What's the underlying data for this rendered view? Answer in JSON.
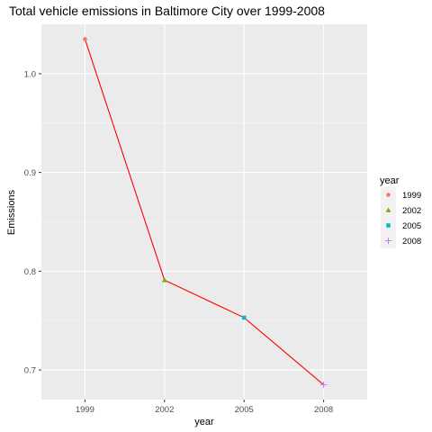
{
  "chart_data": {
    "type": "line",
    "title": "Total vehicle emissions in Baltimore City over 1999-2008",
    "xlabel": "year",
    "ylabel": "Emissions",
    "x": [
      "1999",
      "2002",
      "2005",
      "2008"
    ],
    "series": [
      {
        "values": [
          1.035,
          0.791,
          0.753,
          0.685
        ],
        "color": "#ff0000"
      }
    ],
    "points": [
      {
        "year": "1999",
        "value": 1.035,
        "color": "#F8766D",
        "shape": "circle"
      },
      {
        "year": "2002",
        "value": 0.791,
        "color": "#7CAE00",
        "shape": "triangle"
      },
      {
        "year": "2005",
        "value": 0.753,
        "color": "#00BFC4",
        "shape": "square"
      },
      {
        "year": "2008",
        "value": 0.685,
        "color": "#C77CFF",
        "shape": "plus"
      }
    ],
    "ylim": [
      0.67,
      1.05
    ],
    "yticks": [
      0.7,
      0.8,
      0.9,
      1.0
    ],
    "ytick_labels": [
      "0.7",
      "0.8",
      "0.9",
      "1.0"
    ],
    "grid": true,
    "panel_background": "#EBEBEB",
    "legend": {
      "title": "year",
      "position": "right",
      "entries": [
        "1999",
        "2002",
        "2005",
        "2008"
      ]
    }
  }
}
